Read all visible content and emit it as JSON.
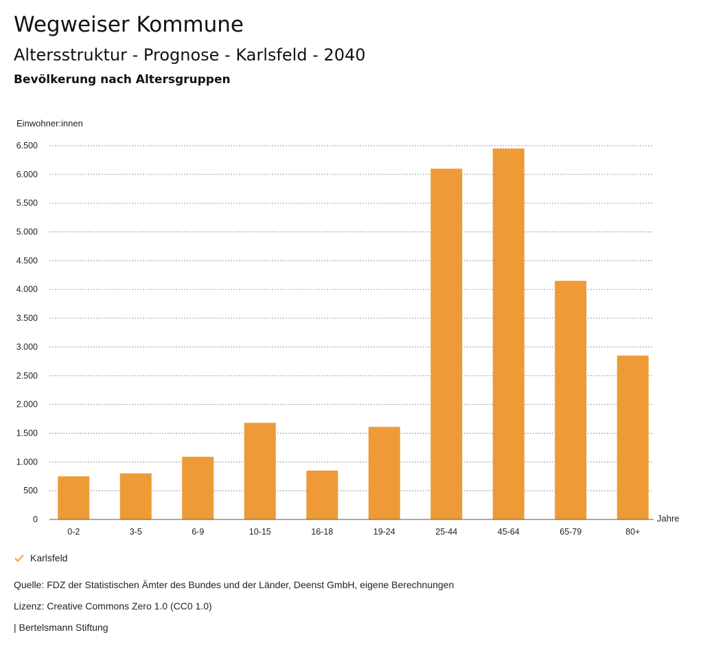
{
  "header": {
    "title": "Wegweiser Kommune",
    "subtitle": "Altersstruktur - Prognose - Karlsfeld - 2040",
    "subsubtitle": "Bevölkerung nach Altersgruppen"
  },
  "chart_data": {
    "type": "bar",
    "ylabel": "Einwohner:innen",
    "xlabel": "Jahre",
    "ylim": [
      0,
      6500
    ],
    "yticks": [
      0,
      500,
      1000,
      1500,
      2000,
      2500,
      3000,
      3500,
      4000,
      4500,
      5000,
      5500,
      6000,
      6500
    ],
    "ytick_labels": [
      "0",
      "500",
      "1.000",
      "1.500",
      "2.000",
      "2.500",
      "3.000",
      "3.500",
      "4.000",
      "4.500",
      "5.000",
      "5.500",
      "6.000",
      "6.500"
    ],
    "categories": [
      "0-2",
      "3-5",
      "6-9",
      "10-15",
      "16-18",
      "19-24",
      "25-44",
      "45-64",
      "65-79",
      "80+"
    ],
    "series": [
      {
        "name": "Karlsfeld",
        "values": [
          750,
          800,
          1090,
          1680,
          850,
          1610,
          6100,
          6450,
          4150,
          2850
        ],
        "color": "#ee9a37"
      }
    ],
    "grid": true,
    "gridline_style": "dotted",
    "legend_position": "bottom-left"
  },
  "legend": {
    "label": "Karlsfeld",
    "icon": "check-icon",
    "color": "#ee9a37"
  },
  "footer": {
    "source": "Quelle: FDZ der Statistischen Ämter des Bundes und der Länder, Deenst GmbH, eigene Berechnungen",
    "license": "Lizenz: Creative Commons Zero 1.0 (CC0 1.0)",
    "publisher": "| Bertelsmann Stiftung"
  }
}
